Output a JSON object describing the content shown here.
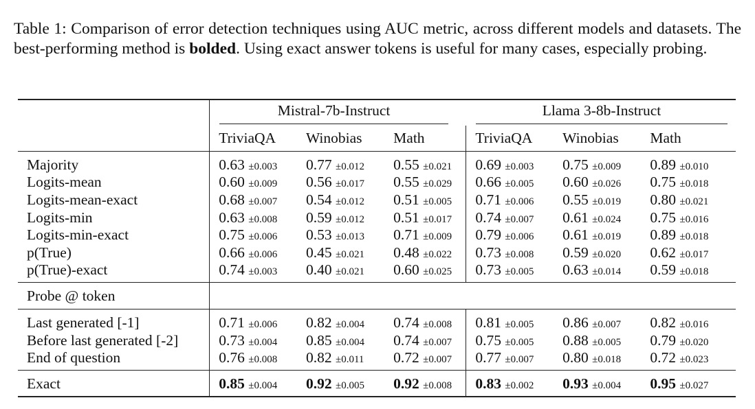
{
  "caption": {
    "text1": "Table 1: Comparison of error detection techniques using AUC metric, across different models and datasets.  The best-performing method is ",
    "bold": "bolded",
    "text2": ".  Using exact answer tokens is useful for many cases, especially probing."
  },
  "models": [
    "Mistral-7b-Instruct",
    "Llama 3-8b-Instruct"
  ],
  "datasets": [
    "TriviaQA",
    "Winobias",
    "Math",
    "TriviaQA",
    "Winobias",
    "Math"
  ],
  "section1": [
    {
      "label": "Majority",
      "cells": [
        [
          "0.63",
          "±0.003"
        ],
        [
          "0.77",
          "±0.012"
        ],
        [
          "0.55",
          "±0.021"
        ],
        [
          "0.69",
          "±0.003"
        ],
        [
          "0.75",
          "±0.009"
        ],
        [
          "0.89",
          "±0.010"
        ]
      ]
    },
    {
      "label": "Logits-mean",
      "cells": [
        [
          "0.60",
          "±0.009"
        ],
        [
          "0.56",
          "±0.017"
        ],
        [
          "0.55",
          "±0.029"
        ],
        [
          "0.66",
          "±0.005"
        ],
        [
          "0.60",
          "±0.026"
        ],
        [
          "0.75",
          "±0.018"
        ]
      ]
    },
    {
      "label": "Logits-mean-exact",
      "cells": [
        [
          "0.68",
          "±0.007"
        ],
        [
          "0.54",
          "±0.012"
        ],
        [
          "0.51",
          "±0.005"
        ],
        [
          "0.71",
          "±0.006"
        ],
        [
          "0.55",
          "±0.019"
        ],
        [
          "0.80",
          "±0.021"
        ]
      ]
    },
    {
      "label": "Logits-min",
      "cells": [
        [
          "0.63",
          "±0.008"
        ],
        [
          "0.59",
          "±0.012"
        ],
        [
          "0.51",
          "±0.017"
        ],
        [
          "0.74",
          "±0.007"
        ],
        [
          "0.61",
          "±0.024"
        ],
        [
          "0.75",
          "±0.016"
        ]
      ]
    },
    {
      "label": "Logits-min-exact",
      "cells": [
        [
          "0.75",
          "±0.006"
        ],
        [
          "0.53",
          "±0.013"
        ],
        [
          "0.71",
          "±0.009"
        ],
        [
          "0.79",
          "±0.006"
        ],
        [
          "0.61",
          "±0.019"
        ],
        [
          "0.89",
          "±0.018"
        ]
      ]
    },
    {
      "label": "p(True)",
      "cells": [
        [
          "0.66",
          "±0.006"
        ],
        [
          "0.45",
          "±0.021"
        ],
        [
          "0.48",
          "±0.022"
        ],
        [
          "0.73",
          "±0.008"
        ],
        [
          "0.59",
          "±0.020"
        ],
        [
          "0.62",
          "±0.017"
        ]
      ]
    },
    {
      "label": "p(True)-exact",
      "cells": [
        [
          "0.74",
          "±0.003"
        ],
        [
          "0.40",
          "±0.021"
        ],
        [
          "0.60",
          "±0.025"
        ],
        [
          "0.73",
          "±0.005"
        ],
        [
          "0.63",
          "±0.014"
        ],
        [
          "0.59",
          "±0.018"
        ]
      ]
    }
  ],
  "probe_header": "Probe @ token",
  "section2": [
    {
      "label": "Last generated [-1]",
      "cells": [
        [
          "0.71",
          "±0.006"
        ],
        [
          "0.82",
          "±0.004"
        ],
        [
          "0.74",
          "±0.008"
        ],
        [
          "0.81",
          "±0.005"
        ],
        [
          "0.86",
          "±0.007"
        ],
        [
          "0.82",
          "±0.016"
        ]
      ]
    },
    {
      "label": "Before last generated [-2]",
      "cells": [
        [
          "0.73",
          "±0.004"
        ],
        [
          "0.85",
          "±0.004"
        ],
        [
          "0.74",
          "±0.007"
        ],
        [
          "0.75",
          "±0.005"
        ],
        [
          "0.88",
          "±0.005"
        ],
        [
          "0.79",
          "±0.020"
        ]
      ]
    },
    {
      "label": "End of question",
      "cells": [
        [
          "0.76",
          "±0.008"
        ],
        [
          "0.82",
          "±0.011"
        ],
        [
          "0.72",
          "±0.007"
        ],
        [
          "0.77",
          "±0.007"
        ],
        [
          "0.80",
          "±0.018"
        ],
        [
          "0.72",
          "±0.023"
        ]
      ]
    }
  ],
  "section3": [
    {
      "label": "Exact",
      "bold": true,
      "cells": [
        [
          "0.85",
          "±0.004"
        ],
        [
          "0.92",
          "±0.005"
        ],
        [
          "0.92",
          "±0.008"
        ],
        [
          "0.83",
          "±0.002"
        ],
        [
          "0.93",
          "±0.004"
        ],
        [
          "0.95",
          "±0.027"
        ]
      ]
    }
  ]
}
